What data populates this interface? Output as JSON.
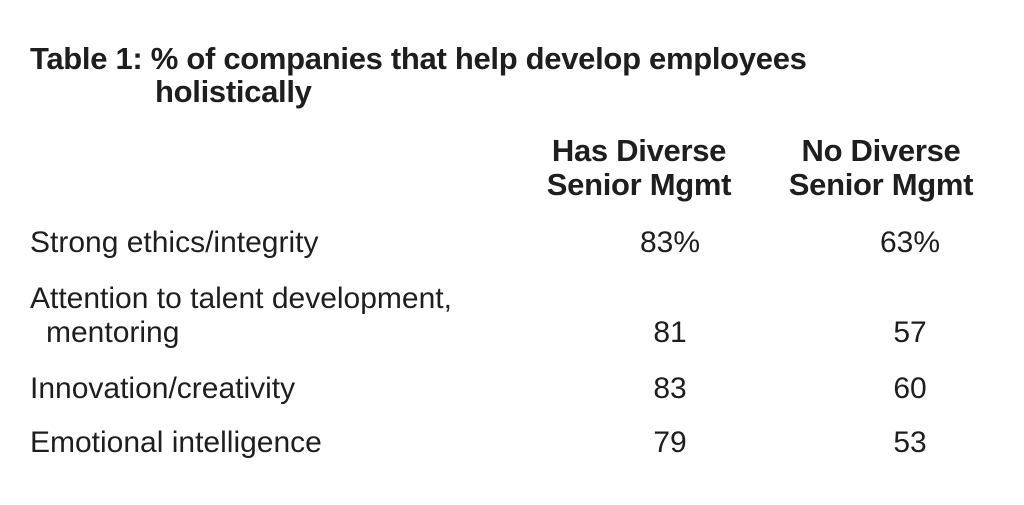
{
  "table": {
    "title_prefix": "Table 1:",
    "title_line1": "% of companies that help develop employees",
    "title_line2": "holistically",
    "columns": [
      {
        "line1": "Has Diverse",
        "line2": "Senior Mgmt"
      },
      {
        "line1": "No Diverse",
        "line2": "Senior Mgmt"
      }
    ],
    "rows": [
      {
        "label": "Strong ethics/integrity",
        "label2": "",
        "v1": "83%",
        "v2": "63%"
      },
      {
        "label": "Attention to talent development,",
        "label2": "mentoring",
        "v1": "81",
        "v2": "57"
      },
      {
        "label": "Innovation/creativity",
        "label2": "",
        "v1": "83",
        "v2": "60"
      },
      {
        "label": "Emotional intelligence",
        "label2": "",
        "v1": "79",
        "v2": "53"
      }
    ]
  },
  "chart_data": {
    "type": "table",
    "title": "Table 1: % of companies that help develop employees holistically",
    "columns": [
      "Has Diverse Senior Mgmt",
      "No Diverse Senior Mgmt"
    ],
    "categories": [
      "Strong ethics/integrity",
      "Attention to talent development, mentoring",
      "Innovation/creativity",
      "Emotional intelligence"
    ],
    "series": [
      {
        "name": "Has Diverse Senior Mgmt",
        "values": [
          83,
          81,
          83,
          79
        ]
      },
      {
        "name": "No Diverse Senior Mgmt",
        "values": [
          63,
          57,
          60,
          53
        ]
      }
    ],
    "unit": "%"
  }
}
